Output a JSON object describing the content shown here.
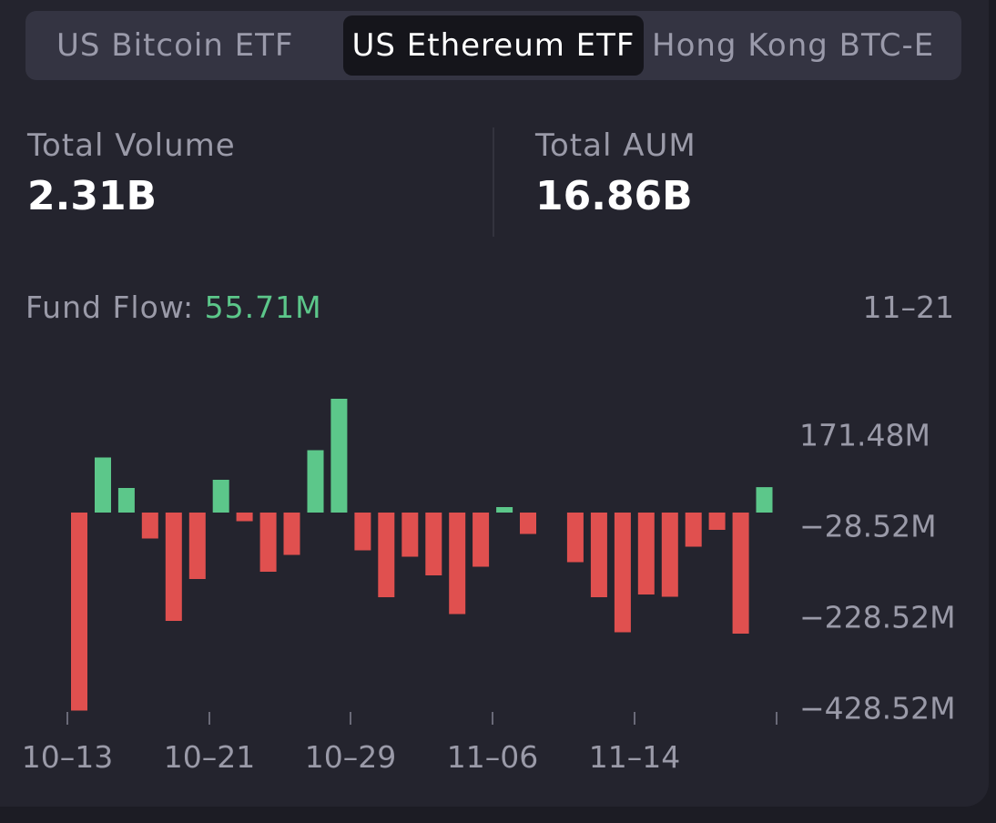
{
  "tabs": [
    {
      "label": "US Bitcoin ETF",
      "selected": false
    },
    {
      "label": "US Ethereum ETF",
      "selected": true
    },
    {
      "label": "Hong Kong BTC-E",
      "selected": false
    }
  ],
  "stats": {
    "volume_label": "Total Volume",
    "volume_value": "2.31B",
    "aum_label": "Total AUM",
    "aum_value": "16.86B"
  },
  "fund_flow": {
    "label": "Fund Flow:",
    "value": "55.71M",
    "date": "11–21"
  },
  "colors": {
    "positive": "#5cc78a",
    "negative": "#e0504f",
    "background": "#24242e"
  },
  "chart_data": {
    "type": "bar",
    "x_tick_labels": [
      "10–13",
      "10–21",
      "10–29",
      "11–06",
      "11–14"
    ],
    "y_tick_labels": [
      "171.48M",
      "−28.52M",
      "−228.52M",
      "−428.52M"
    ],
    "y_tick_values": [
      171.48,
      -28.52,
      -228.52,
      -428.52
    ],
    "ylim": [
      -428.52,
      221.48
    ],
    "values": [
      -435.0,
      121.0,
      54.0,
      -57.0,
      -238.0,
      -146.0,
      72.0,
      -19.0,
      -130.0,
      -93.0,
      137.0,
      250.0,
      -83.0,
      -186.0,
      -97.0,
      -138.0,
      -223.0,
      -119.0,
      12.0,
      -47.0,
      null,
      -109.0,
      -186.0,
      -263.0,
      -180.0,
      -185.0,
      -75.0,
      -38.0,
      -266.0,
      55.71
    ]
  }
}
